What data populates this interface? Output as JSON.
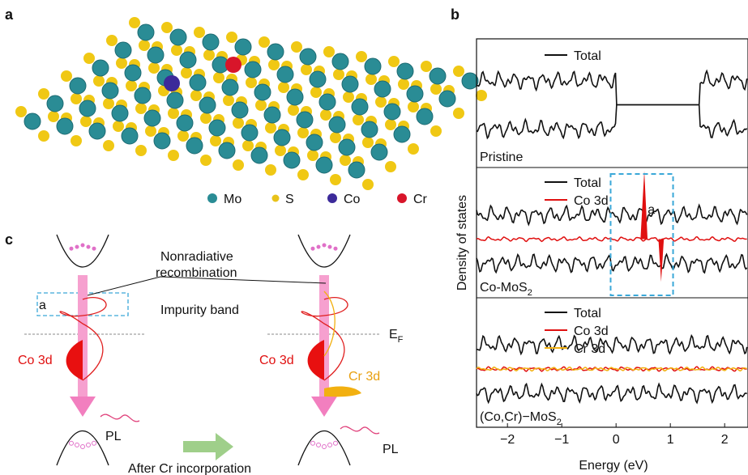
{
  "panel_labels": [
    "a",
    "b",
    "c"
  ],
  "panel_a": {
    "legend": [
      "Mo",
      "S",
      "Co",
      "Cr"
    ]
  },
  "panel_c": {
    "nonradiative": [
      "Nonradiative",
      "recombination"
    ],
    "box_label": "a",
    "impurity_band": "Impurity band",
    "fermi": {
      "text": "E",
      "sub": "F"
    },
    "co_left": "Co 3d",
    "co_right": "Co 3d",
    "cr": "Cr 3d",
    "pl_left": "PL",
    "pl_right": "PL",
    "after": "After Cr incorporation"
  },
  "chart_data": {
    "type": "dos",
    "xlabel": "Energy (eV)",
    "ylabel": "Density of states",
    "xlim": [
      -2.57,
      2.43
    ],
    "xticks": [
      {
        "value": -2,
        "label": "−2"
      },
      {
        "value": -1,
        "label": "−1"
      },
      0,
      1,
      2
    ],
    "panels": [
      {
        "name": "Pristine",
        "legend": [
          "Total"
        ]
      },
      {
        "name": {
          "text": "Co-MoS",
          "sub": "2"
        },
        "legend": [
          "Total",
          "Co 3d"
        ],
        "annotation": "a"
      },
      {
        "name": {
          "text": "(Co,Cr)−MoS",
          "sub": "2"
        },
        "legend": [
          "Total",
          "Co 3d",
          "Cr 3d"
        ]
      }
    ]
  }
}
